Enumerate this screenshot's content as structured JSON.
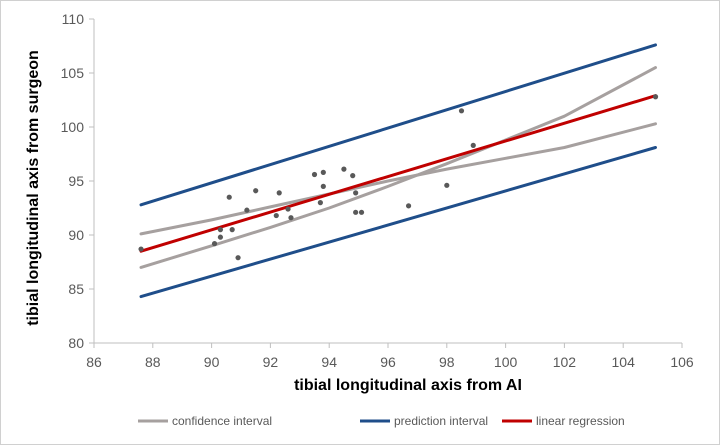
{
  "chart_data": {
    "type": "scatter",
    "xlabel": "tibial longitudinal axis from AI",
    "ylabel": "tibial longitudinal axis from surgeon",
    "xlim": [
      86,
      106
    ],
    "ylim": [
      80,
      110
    ],
    "x_ticks": [
      "86",
      "88",
      "90",
      "92",
      "94",
      "96",
      "98",
      "100",
      "102",
      "104",
      "106"
    ],
    "y_ticks": [
      "80",
      "85",
      "90",
      "95",
      "100",
      "105",
      "110"
    ],
    "grid": false,
    "legend_position": "bottom",
    "points": [
      [
        87.6,
        88.7
      ],
      [
        90.1,
        89.2
      ],
      [
        90.3,
        90.5
      ],
      [
        90.3,
        89.8
      ],
      [
        90.6,
        93.5
      ],
      [
        90.7,
        90.5
      ],
      [
        90.9,
        87.9
      ],
      [
        91.2,
        92.3
      ],
      [
        91.5,
        94.1
      ],
      [
        92.2,
        91.8
      ],
      [
        92.3,
        93.9
      ],
      [
        92.6,
        92.4
      ],
      [
        92.7,
        91.6
      ],
      [
        93.5,
        95.6
      ],
      [
        93.7,
        93.0
      ],
      [
        93.8,
        94.5
      ],
      [
        93.8,
        95.8
      ],
      [
        94.5,
        96.1
      ],
      [
        94.8,
        95.5
      ],
      [
        94.9,
        93.9
      ],
      [
        94.9,
        92.1
      ],
      [
        95.1,
        92.1
      ],
      [
        96.7,
        92.7
      ],
      [
        98.0,
        94.6
      ],
      [
        98.5,
        101.5
      ],
      [
        98.9,
        98.3
      ],
      [
        105.1,
        102.8
      ]
    ],
    "series": [
      {
        "name": "confidence interval",
        "color": "#a6a09f",
        "segments": [
          [
            [
              87.6,
              90.1
            ],
            [
              90.0,
              91.4
            ],
            [
              92.0,
              92.6
            ],
            [
              94.0,
              93.8
            ],
            [
              96.0,
              95.0
            ],
            [
              98.0,
              96.1
            ],
            [
              100.0,
              97.1
            ],
            [
              102.0,
              98.1
            ],
            [
              105.1,
              100.3
            ]
          ],
          [
            [
              87.6,
              87.0
            ],
            [
              90.0,
              89.0
            ],
            [
              92.0,
              90.7
            ],
            [
              94.0,
              92.5
            ],
            [
              96.0,
              94.5
            ],
            [
              98.0,
              96.6
            ],
            [
              100.0,
              98.8
            ],
            [
              102.0,
              101.0
            ],
            [
              105.1,
              105.5
            ]
          ]
        ]
      },
      {
        "name": "prediction interval",
        "color": "#1f4e8a",
        "segments": [
          [
            [
              87.6,
              92.8
            ],
            [
              105.1,
              107.6
            ]
          ],
          [
            [
              87.6,
              84.3
            ],
            [
              105.1,
              98.1
            ]
          ]
        ]
      },
      {
        "name": "linear regression",
        "color": "#c00000",
        "segments": [
          [
            [
              87.6,
              88.5
            ],
            [
              105.1,
              102.9
            ]
          ]
        ]
      }
    ]
  }
}
